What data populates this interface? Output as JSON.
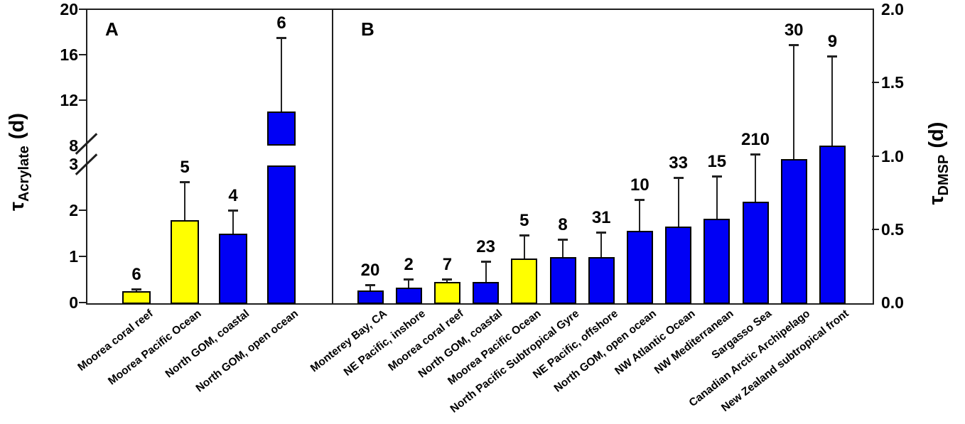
{
  "labels": {
    "panel_a": "A",
    "panel_b": "B",
    "left_axis_tau": "τ",
    "left_axis_sub": "Acrylate",
    "left_axis_unit": "(d)",
    "right_axis_tau": "τ",
    "right_axis_sub": "DMSP",
    "right_axis_unit": "(d)"
  },
  "colors": {
    "yellow_bar": "#ffff00",
    "blue_bar": "#0000f5",
    "bar_border": "#000000",
    "axis_line": "#1f1f1f",
    "error_bar": "#222222"
  },
  "chart_data": [
    {
      "type": "bar",
      "panel": "A",
      "ylabel": "τ_Acrylate (d)",
      "yaxis_side": "left",
      "axis_break": {
        "lower_range": [
          0,
          3
        ],
        "upper_range": [
          8,
          20
        ],
        "lower_tick_labels": [
          "0",
          "1",
          "2",
          "3"
        ],
        "upper_tick_labels": [
          "8",
          "12",
          "16",
          "20"
        ],
        "lower_ticks": [
          0,
          1,
          2,
          3
        ],
        "upper_ticks": [
          8,
          12,
          16,
          20
        ]
      },
      "grid": false,
      "legend": "none",
      "categories": [
        "Moorea coral reef",
        "Moorea Pacific Ocean",
        "North GOM, coastal",
        "North GOM, open ocean"
      ],
      "values": [
        0.25,
        1.78,
        1.5,
        11.0
      ],
      "error_up": [
        0.05,
        0.84,
        0.5,
        6.5
      ],
      "n_labels": [
        "6",
        "5",
        "4",
        "6"
      ],
      "bar_colors": [
        "yellow",
        "yellow",
        "blue",
        "blue"
      ]
    },
    {
      "type": "bar",
      "panel": "B",
      "ylabel": "τ_DMSP (d)",
      "yaxis_side": "right",
      "ylim": [
        0,
        2.0
      ],
      "yticks": [
        0,
        0.5,
        1.0,
        1.5,
        2.0
      ],
      "ytick_labels": [
        "0.0",
        "0.5",
        "1.0",
        "1.5",
        "2.0"
      ],
      "grid": false,
      "legend": "none",
      "categories": [
        "Monterey Bay, CA",
        "NE Pacific, inshore",
        "Moorea coral reef",
        "North GOM, coastal",
        "Moorea Pacific Ocean",
        "North Pacific Subtropical Gyre",
        "NE Pacific, offshore",
        "North GOM, open ocean",
        "NW Atlantic Ocean",
        "NW Mediterranean",
        "Sargasso Sea",
        "Canadian Arctic Archipelago",
        "New Zealand subtropical front"
      ],
      "values": [
        0.08,
        0.1,
        0.14,
        0.14,
        0.3,
        0.31,
        0.31,
        0.49,
        0.52,
        0.57,
        0.69,
        0.98,
        1.07
      ],
      "error_up": [
        0.04,
        0.06,
        0.02,
        0.14,
        0.16,
        0.12,
        0.17,
        0.21,
        0.33,
        0.29,
        0.32,
        0.78,
        0.61
      ],
      "n_labels": [
        "20",
        "2",
        "7",
        "23",
        "5",
        "8",
        "31",
        "10",
        "33",
        "15",
        "210",
        "30",
        "9"
      ],
      "bar_colors": [
        "blue",
        "blue",
        "yellow",
        "blue",
        "yellow",
        "blue",
        "blue",
        "blue",
        "blue",
        "blue",
        "blue",
        "blue",
        "blue"
      ]
    }
  ]
}
